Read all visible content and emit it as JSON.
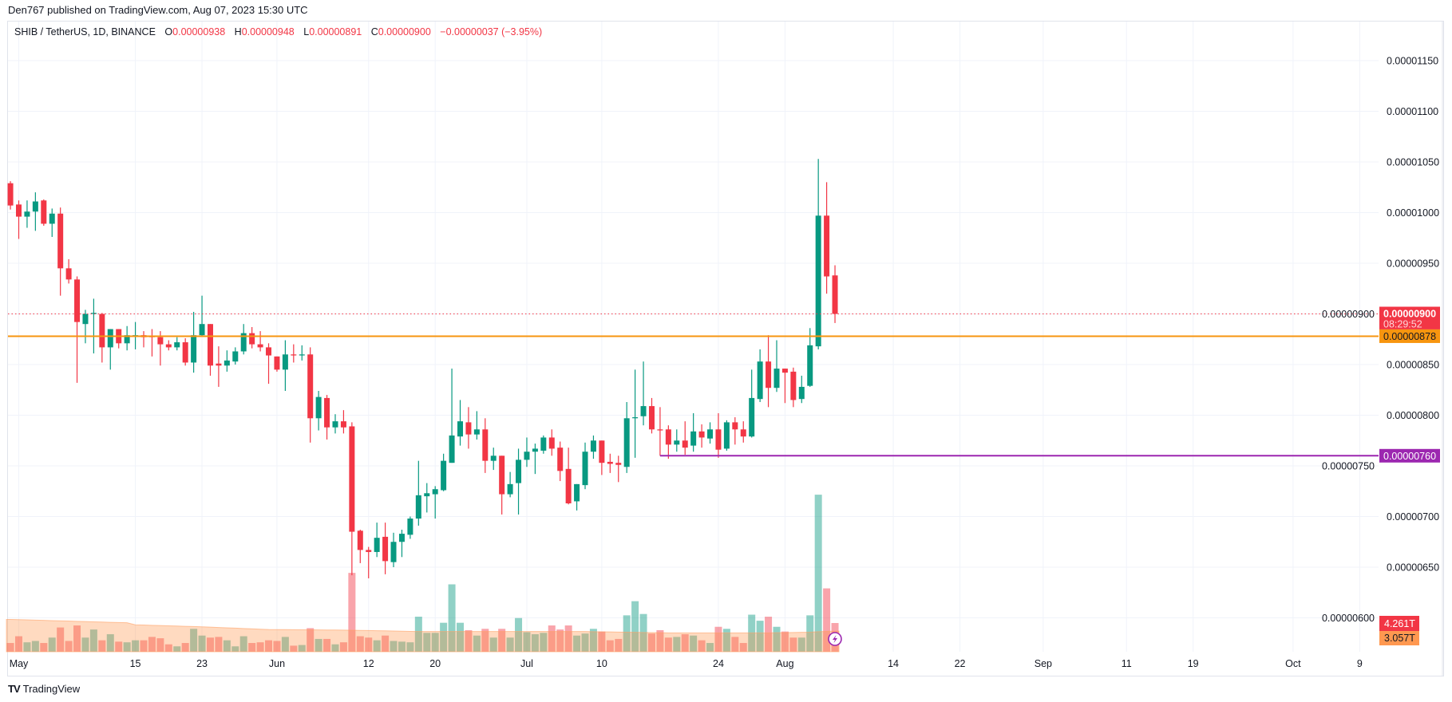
{
  "publisher_line": "Den767 published on TradingView.com, Aug 07, 2023 15:30 UTC",
  "legend": {
    "symbol": "SHIB / TetherUS, 1D, BINANCE",
    "open_label": "O",
    "open": "0.00000938",
    "high_label": "H",
    "high": "0.00000948",
    "low_label": "L",
    "low": "0.00000891",
    "close_label": "C",
    "close": "0.00000900",
    "change": "−0.00000037 (−3.95%)"
  },
  "footer": {
    "logo_mark": "TV",
    "logo_text": "TradingView"
  },
  "colors": {
    "up": "#089981",
    "down": "#f23645",
    "support": "#f7950f",
    "level": "#9c27b0",
    "volume_ma": "#ff9850"
  },
  "chart_data": {
    "type": "candlestick",
    "symbol": "SHIB / TetherUS",
    "interval": "1D",
    "exchange": "BINANCE",
    "y_scale": "linear",
    "ylim": [
      5.9e-06,
      1.18e-05
    ],
    "grid": true,
    "price_ticks": [
      "0.00001150",
      "0.00001100",
      "0.00001050",
      "0.00001000",
      "0.00000950",
      "0.00000900",
      "0.00000850",
      "0.00000800",
      "0.00000750",
      "0.00000700",
      "0.00000650",
      "0.00000600"
    ],
    "x_ticks": [
      {
        "label": "May",
        "date": "2023-05-01"
      },
      {
        "label": "15",
        "date": "2023-05-15"
      },
      {
        "label": "23",
        "date": "2023-05-23"
      },
      {
        "label": "Jun",
        "date": "2023-06-01"
      },
      {
        "label": "12",
        "date": "2023-06-12"
      },
      {
        "label": "20",
        "date": "2023-06-20"
      },
      {
        "label": "Jul",
        "date": "2023-07-01"
      },
      {
        "label": "10",
        "date": "2023-07-10"
      },
      {
        "label": "24",
        "date": "2023-07-24"
      },
      {
        "label": "Aug",
        "date": "2023-08-01"
      },
      {
        "label": "14",
        "date": "2023-08-14"
      },
      {
        "label": "22",
        "date": "2023-08-22"
      },
      {
        "label": "Sep",
        "date": "2023-09-01"
      },
      {
        "label": "11",
        "date": "2023-09-11"
      },
      {
        "label": "19",
        "date": "2023-09-19"
      },
      {
        "label": "Oct",
        "date": "2023-10-01"
      },
      {
        "label": "9",
        "date": "2023-10-09"
      }
    ],
    "columns": [
      "date",
      "open",
      "high",
      "low",
      "close",
      "volume_T"
    ],
    "candles": [
      [
        "2023-04-30",
        1.029e-05,
        1.031e-05,
        1.003e-05,
        1.007e-05,
        1.3
      ],
      [
        "2023-05-01",
        1.008e-05,
        1.012e-05,
        9.74e-06,
        9.96e-06,
        2.3
      ],
      [
        "2023-05-02",
        9.96e-06,
        1.012e-05,
        9.85e-06,
        1.001e-05,
        1.4
      ],
      [
        "2023-05-03",
        1.001e-05,
        1.02e-05,
        9.82e-06,
        1.011e-05,
        1.6
      ],
      [
        "2023-05-04",
        1.012e-05,
        1.013e-05,
        9.87e-06,
        9.89e-06,
        1.3
      ],
      [
        "2023-05-05",
        9.89e-06,
        1.004e-05,
        9.76e-06,
        9.99e-06,
        2.1
      ],
      [
        "2023-05-06",
        9.99e-06,
        1.005e-05,
        9.18e-06,
        9.45e-06,
        3.6
      ],
      [
        "2023-05-07",
        9.45e-06,
        9.54e-06,
        9.3e-06,
        9.34e-06,
        1.6
      ],
      [
        "2023-05-08",
        9.34e-06,
        9.37e-06,
        8.32e-06,
        8.92e-06,
        3.9
      ],
      [
        "2023-05-09",
        8.9e-06,
        9.04e-06,
        8.71e-06,
        9e-06,
        2.1
      ],
      [
        "2023-05-10",
        9e-06,
        9.15e-06,
        8.61e-06,
        9.01e-06,
        3.3
      ],
      [
        "2023-05-11",
        9e-06,
        9.01e-06,
        8.52e-06,
        8.67e-06,
        1.7
      ],
      [
        "2023-05-12",
        8.67e-06,
        8.85e-06,
        8.45e-06,
        8.85e-06,
        2.6
      ],
      [
        "2023-05-13",
        8.85e-06,
        8.85e-06,
        8.66e-06,
        8.71e-06,
        1.5
      ],
      [
        "2023-05-14",
        8.71e-06,
        8.88e-06,
        8.64e-06,
        8.79e-06,
        1.4
      ],
      [
        "2023-05-15",
        8.78e-06,
        8.92e-06,
        8.65e-06,
        8.79e-06,
        1.7
      ],
      [
        "2023-05-16",
        8.79e-06,
        8.83e-06,
        8.67e-06,
        8.77e-06,
        1.7
      ],
      [
        "2023-05-17",
        8.78e-06,
        8.85e-06,
        8.58e-06,
        8.77e-06,
        2.2
      ],
      [
        "2023-05-18",
        8.77e-06,
        8.83e-06,
        8.49e-06,
        8.7e-06,
        2.0
      ],
      [
        "2023-05-19",
        8.7e-06,
        8.74e-06,
        8.64e-06,
        8.67e-06,
        1.1
      ],
      [
        "2023-05-20",
        8.67e-06,
        8.77e-06,
        8.64e-06,
        8.72e-06,
        0.8
      ],
      [
        "2023-05-21",
        8.72e-06,
        8.76e-06,
        8.49e-06,
        8.52e-06,
        1.3
      ],
      [
        "2023-05-22",
        8.52e-06,
        9.02e-06,
        8.42e-06,
        8.79e-06,
        3.4
      ],
      [
        "2023-05-23",
        8.79e-06,
        9.18e-06,
        8.78e-06,
        8.9e-06,
        2.4
      ],
      [
        "2023-05-24",
        8.9e-06,
        8.9e-06,
        8.39e-06,
        8.49e-06,
        2.1
      ],
      [
        "2023-05-25",
        8.51e-06,
        8.68e-06,
        8.28e-06,
        8.49e-06,
        2.2
      ],
      [
        "2023-05-26",
        8.49e-06,
        8.64e-06,
        8.43e-06,
        8.54e-06,
        1.7
      ],
      [
        "2023-05-27",
        8.53e-06,
        8.67e-06,
        8.5e-06,
        8.63e-06,
        0.8
      ],
      [
        "2023-05-28",
        8.63e-06,
        8.9e-06,
        8.6e-06,
        8.81e-06,
        2.3
      ],
      [
        "2023-05-29",
        8.81e-06,
        8.87e-06,
        8.66e-06,
        8.7e-06,
        1.3
      ],
      [
        "2023-05-30",
        8.7e-06,
        8.83e-06,
        8.63e-06,
        8.67e-06,
        1.4
      ],
      [
        "2023-05-31",
        8.67e-06,
        8.71e-06,
        8.31e-06,
        8.59e-06,
        1.7
      ],
      [
        "2023-06-01",
        8.58e-06,
        8.58e-06,
        8.43e-06,
        8.45e-06,
        1.6
      ],
      [
        "2023-06-02",
        8.45e-06,
        8.74e-06,
        8.24e-06,
        8.6e-06,
        2.2
      ],
      [
        "2023-06-03",
        8.6e-06,
        8.7e-06,
        8.52e-06,
        8.59e-06,
        0.9
      ],
      [
        "2023-06-04",
        8.59e-06,
        8.69e-06,
        8.54e-06,
        8.6e-06,
        1.0
      ],
      [
        "2023-06-05",
        8.6e-06,
        8.67e-06,
        7.73e-06,
        7.97e-06,
        3.5
      ],
      [
        "2023-06-06",
        7.97e-06,
        8.24e-06,
        7.85e-06,
        8.18e-06,
        1.9
      ],
      [
        "2023-06-07",
        8.17e-06,
        8.2e-06,
        7.76e-06,
        7.88e-06,
        1.9
      ],
      [
        "2023-06-08",
        7.88e-06,
        8.01e-06,
        7.82e-06,
        7.94e-06,
        1.1
      ],
      [
        "2023-06-09",
        7.94e-06,
        8.05e-06,
        7.82e-06,
        7.88e-06,
        1.4
      ],
      [
        "2023-06-10",
        7.89e-06,
        7.93e-06,
        6.42e-06,
        6.85e-06,
        11.7
      ],
      [
        "2023-06-11",
        6.86e-06,
        6.87e-06,
        6.54e-06,
        6.67e-06,
        2.3
      ],
      [
        "2023-06-12",
        6.67e-06,
        6.7e-06,
        6.39e-06,
        6.65e-06,
        2.1
      ],
      [
        "2023-06-13",
        6.65e-06,
        6.94e-06,
        6.6e-06,
        6.79e-06,
        1.7
      ],
      [
        "2023-06-14",
        6.8e-06,
        6.94e-06,
        6.43e-06,
        6.56e-06,
        2.4
      ],
      [
        "2023-06-15",
        6.55e-06,
        6.84e-06,
        6.5e-06,
        6.75e-06,
        1.6
      ],
      [
        "2023-06-16",
        6.75e-06,
        6.87e-06,
        6.6e-06,
        6.83e-06,
        1.5
      ],
      [
        "2023-06-17",
        6.82e-06,
        7e-06,
        6.78e-06,
        6.98e-06,
        1.4
      ],
      [
        "2023-06-18",
        6.98e-06,
        7.55e-06,
        6.91e-06,
        7.21e-06,
        5.2
      ],
      [
        "2023-06-19",
        7.2e-06,
        7.33e-06,
        7.04e-06,
        7.23e-06,
        2.8
      ],
      [
        "2023-06-20",
        7.22e-06,
        7.3e-06,
        6.98e-06,
        7.27e-06,
        2.8
      ],
      [
        "2023-06-21",
        7.26e-06,
        7.62e-06,
        7.25e-06,
        7.55e-06,
        4.3
      ],
      [
        "2023-06-22",
        7.53e-06,
        8.46e-06,
        7.53e-06,
        7.8e-06,
        10.0
      ],
      [
        "2023-06-23",
        7.79e-06,
        8.15e-06,
        7.7e-06,
        7.94e-06,
        4.3
      ],
      [
        "2023-06-24",
        7.93e-06,
        8.08e-06,
        7.67e-06,
        7.81e-06,
        3.2
      ],
      [
        "2023-06-25",
        7.81e-06,
        8.04e-06,
        7.76e-06,
        7.86e-06,
        2.4
      ],
      [
        "2023-06-26",
        7.86e-06,
        7.97e-06,
        7.43e-06,
        7.55e-06,
        3.4
      ],
      [
        "2023-06-27",
        7.55e-06,
        7.68e-06,
        7.46e-06,
        7.6e-06,
        2.1
      ],
      [
        "2023-06-28",
        7.6e-06,
        7.6e-06,
        7.02e-06,
        7.22e-06,
        3.4
      ],
      [
        "2023-06-29",
        7.22e-06,
        7.44e-06,
        7.19e-06,
        7.32e-06,
        2.1
      ],
      [
        "2023-06-30",
        7.33e-06,
        7.67e-06,
        7.02e-06,
        7.56e-06,
        5.0
      ],
      [
        "2023-07-01",
        7.56e-06,
        7.78e-06,
        7.49e-06,
        7.64e-06,
        2.9
      ],
      [
        "2023-07-02",
        7.64e-06,
        7.72e-06,
        7.42e-06,
        7.67e-06,
        2.6
      ],
      [
        "2023-07-03",
        7.65e-06,
        7.8e-06,
        7.62e-06,
        7.78e-06,
        2.8
      ],
      [
        "2023-07-04",
        7.78e-06,
        7.86e-06,
        7.6e-06,
        7.67e-06,
        3.9
      ],
      [
        "2023-07-05",
        7.68e-06,
        7.74e-06,
        7.35e-06,
        7.45e-06,
        3.3
      ],
      [
        "2023-07-06",
        7.47e-06,
        7.68e-06,
        7.12e-06,
        7.13e-06,
        3.9
      ],
      [
        "2023-07-07",
        7.15e-06,
        7.32e-06,
        7.06e-06,
        7.32e-06,
        2.4
      ],
      [
        "2023-07-08",
        7.31e-06,
        7.73e-06,
        7.27e-06,
        7.64e-06,
        2.7
      ],
      [
        "2023-07-09",
        7.64e-06,
        7.8e-06,
        7.57e-06,
        7.75e-06,
        3.4
      ],
      [
        "2023-07-10",
        7.75e-06,
        7.75e-06,
        7.41e-06,
        7.53e-06,
        3.0
      ],
      [
        "2023-07-11",
        7.54e-06,
        7.62e-06,
        7.43e-06,
        7.52e-06,
        1.7
      ],
      [
        "2023-07-12",
        7.53e-06,
        7.6e-06,
        7.34e-06,
        7.51e-06,
        1.9
      ],
      [
        "2023-07-13",
        7.49e-06,
        8.13e-06,
        7.43e-06,
        7.97e-06,
        5.4
      ],
      [
        "2023-07-14",
        7.97e-06,
        8.45e-06,
        7.58e-06,
        7.98e-06,
        7.5
      ],
      [
        "2023-07-15",
        7.99e-06,
        8.53e-06,
        7.9e-06,
        8.09e-06,
        5.6
      ],
      [
        "2023-07-16",
        8.09e-06,
        8.17e-06,
        7.82e-06,
        7.86e-06,
        2.7
      ],
      [
        "2023-07-17",
        7.86e-06,
        8.08e-06,
        7.6e-06,
        7.85e-06,
        3.2
      ],
      [
        "2023-07-18",
        7.86e-06,
        7.9e-06,
        7.57e-06,
        7.71e-06,
        2.1
      ],
      [
        "2023-07-19",
        7.71e-06,
        7.86e-06,
        7.64e-06,
        7.75e-06,
        2.2
      ],
      [
        "2023-07-20",
        7.75e-06,
        7.94e-06,
        7.61e-06,
        7.68e-06,
        2.6
      ],
      [
        "2023-07-21",
        7.7e-06,
        8.02e-06,
        7.64e-06,
        7.84e-06,
        2.4
      ],
      [
        "2023-07-22",
        7.84e-06,
        7.91e-06,
        7.68e-06,
        7.78e-06,
        1.7
      ],
      [
        "2023-07-23",
        7.77e-06,
        7.93e-06,
        7.72e-06,
        7.86e-06,
        1.3
      ],
      [
        "2023-07-24",
        7.86e-06,
        8.02e-06,
        7.58e-06,
        7.66e-06,
        3.7
      ],
      [
        "2023-07-25",
        7.67e-06,
        7.95e-06,
        7.65e-06,
        7.93e-06,
        3.4
      ],
      [
        "2023-07-26",
        7.93e-06,
        7.98e-06,
        7.71e-06,
        7.86e-06,
        2.2
      ],
      [
        "2023-07-27",
        7.86e-06,
        7.94e-06,
        7.73e-06,
        7.79e-06,
        1.3
      ],
      [
        "2023-07-28",
        7.79e-06,
        8.45e-06,
        7.78e-06,
        8.17e-06,
        5.5
      ],
      [
        "2023-07-29",
        8.16e-06,
        8.65e-06,
        8.13e-06,
        8.53e-06,
        4.6
      ],
      [
        "2023-07-30",
        8.53e-06,
        8.79e-06,
        8.08e-06,
        8.27e-06,
        5.2
      ],
      [
        "2023-07-31",
        8.27e-06,
        8.74e-06,
        8.23e-06,
        8.46e-06,
        3.7
      ],
      [
        "2023-08-01",
        8.46e-06,
        8.46e-06,
        8.12e-06,
        8.42e-06,
        3.0
      ],
      [
        "2023-08-02",
        8.43e-06,
        8.47e-06,
        8.08e-06,
        8.15e-06,
        2.1
      ],
      [
        "2023-08-03",
        8.16e-06,
        8.39e-06,
        8.12e-06,
        8.28e-06,
        2.1
      ],
      [
        "2023-08-04",
        8.29e-06,
        8.86e-06,
        8.28e-06,
        8.69e-06,
        5.4
      ],
      [
        "2023-08-05",
        8.68e-06,
        1.053e-05,
        8.65e-06,
        9.97e-06,
        23.3
      ],
      [
        "2023-08-06",
        9.97e-06,
        1.03e-05,
        9.2e-06,
        9.37e-06,
        9.4
      ],
      [
        "2023-08-07",
        9.38e-06,
        9.48e-06,
        8.91e-06,
        9e-06,
        4.261
      ]
    ],
    "volume_ma_T": [
      4.8,
      4.76,
      4.73,
      4.69,
      4.66,
      4.62,
      4.59,
      4.55,
      4.51,
      4.48,
      4.44,
      4.41,
      4.37,
      4.34,
      4.3,
      4.0,
      3.96,
      3.92,
      3.89,
      3.85,
      3.81,
      3.77,
      3.74,
      3.7,
      3.65,
      3.6,
      3.55,
      3.5,
      3.45,
      3.4,
      3.35,
      3.3,
      3.29,
      3.28,
      3.27,
      3.26,
      3.25,
      3.24,
      3.23,
      3.22,
      3.21,
      3.2,
      3.17,
      3.15,
      3.12,
      3.1,
      3.07,
      3.05,
      3.02,
      3.0,
      3.0,
      3.0,
      3.0,
      3.0,
      3.0,
      3.0,
      3.0,
      3.0,
      3.0,
      3.0,
      3.0,
      3.0,
      3.0,
      3.0,
      3.0,
      3.0,
      3.0,
      3.0,
      3.0,
      3.0,
      2.98,
      2.96,
      2.94,
      2.92,
      2.9,
      2.88,
      2.86,
      2.84,
      2.82,
      2.8,
      2.8,
      2.8,
      2.8,
      2.8,
      2.8,
      2.8,
      2.8,
      2.8,
      2.8,
      2.8,
      2.8,
      2.8,
      2.82,
      2.84,
      2.86,
      2.88,
      2.9,
      2.98,
      3.02,
      3.057
    ],
    "current_price": {
      "value": 9e-06,
      "label": "0.00000900",
      "countdown": "08:29:52"
    },
    "horizontal_lines": [
      {
        "name": "support",
        "value": 8.78e-06,
        "label": "0.00000878",
        "color": "#f7950f",
        "from": "full"
      },
      {
        "name": "level",
        "value": 7.6e-06,
        "label": "0.00000760",
        "color": "#9c27b0",
        "from": "2023-07-17"
      }
    ],
    "volume_labels": {
      "volume": "4.261T",
      "volume_ma": "3.057T"
    }
  }
}
